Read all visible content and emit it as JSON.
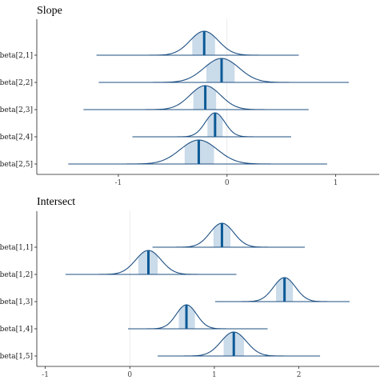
{
  "chart_data": [
    {
      "type": "ridgeline",
      "title": "Slope",
      "xlim": [
        -1.75,
        1.4
      ],
      "x_ticks": [
        -1,
        0,
        1
      ],
      "x_tick_labels": [
        "-1",
        "0",
        "1"
      ],
      "reference_line": 0,
      "grid": false,
      "series": [
        {
          "name": "beta[2,1]",
          "range": [
            -1.2,
            0.66
          ],
          "inner": [
            -0.32,
            -0.11
          ],
          "median": -0.21,
          "scale": 0.13
        },
        {
          "name": "beta[2,2]",
          "range": [
            -1.18,
            1.12
          ],
          "inner": [
            -0.19,
            0.07
          ],
          "median": -0.05,
          "scale": 0.16
        },
        {
          "name": "beta[2,3]",
          "range": [
            -1.32,
            0.75
          ],
          "inner": [
            -0.31,
            -0.1
          ],
          "median": -0.2,
          "scale": 0.14
        },
        {
          "name": "beta[2,4]",
          "range": [
            -0.87,
            0.59
          ],
          "inner": [
            -0.18,
            -0.04
          ],
          "median": -0.11,
          "scale": 0.09
        },
        {
          "name": "beta[2,5]",
          "range": [
            -1.46,
            0.92
          ],
          "inner": [
            -0.39,
            -0.12
          ],
          "median": -0.26,
          "scale": 0.17
        }
      ]
    },
    {
      "type": "ridgeline",
      "title": "Intersect",
      "xlim": [
        -1.1,
        2.95
      ],
      "x_ticks": [
        -1,
        0,
        1,
        2
      ],
      "x_tick_labels": [
        "-1",
        "0",
        "1",
        "2"
      ],
      "reference_line": 0,
      "grid": false,
      "series": [
        {
          "name": "beta[1,1]",
          "range": [
            0.27,
            2.07
          ],
          "inner": [
            0.99,
            1.19
          ],
          "median": 1.09,
          "scale": 0.14
        },
        {
          "name": "beta[1,2]",
          "range": [
            -0.76,
            1.26
          ],
          "inner": [
            0.1,
            0.33
          ],
          "median": 0.22,
          "scale": 0.15
        },
        {
          "name": "beta[1,3]",
          "range": [
            1.01,
            2.6
          ],
          "inner": [
            1.73,
            1.93
          ],
          "median": 1.83,
          "scale": 0.13
        },
        {
          "name": "beta[1,4]",
          "range": [
            -0.02,
            1.63
          ],
          "inner": [
            0.58,
            0.77
          ],
          "median": 0.67,
          "scale": 0.12
        },
        {
          "name": "beta[1,5]",
          "range": [
            0.33,
            2.25
          ],
          "inner": [
            1.11,
            1.35
          ],
          "median": 1.23,
          "scale": 0.15
        }
      ]
    }
  ]
}
